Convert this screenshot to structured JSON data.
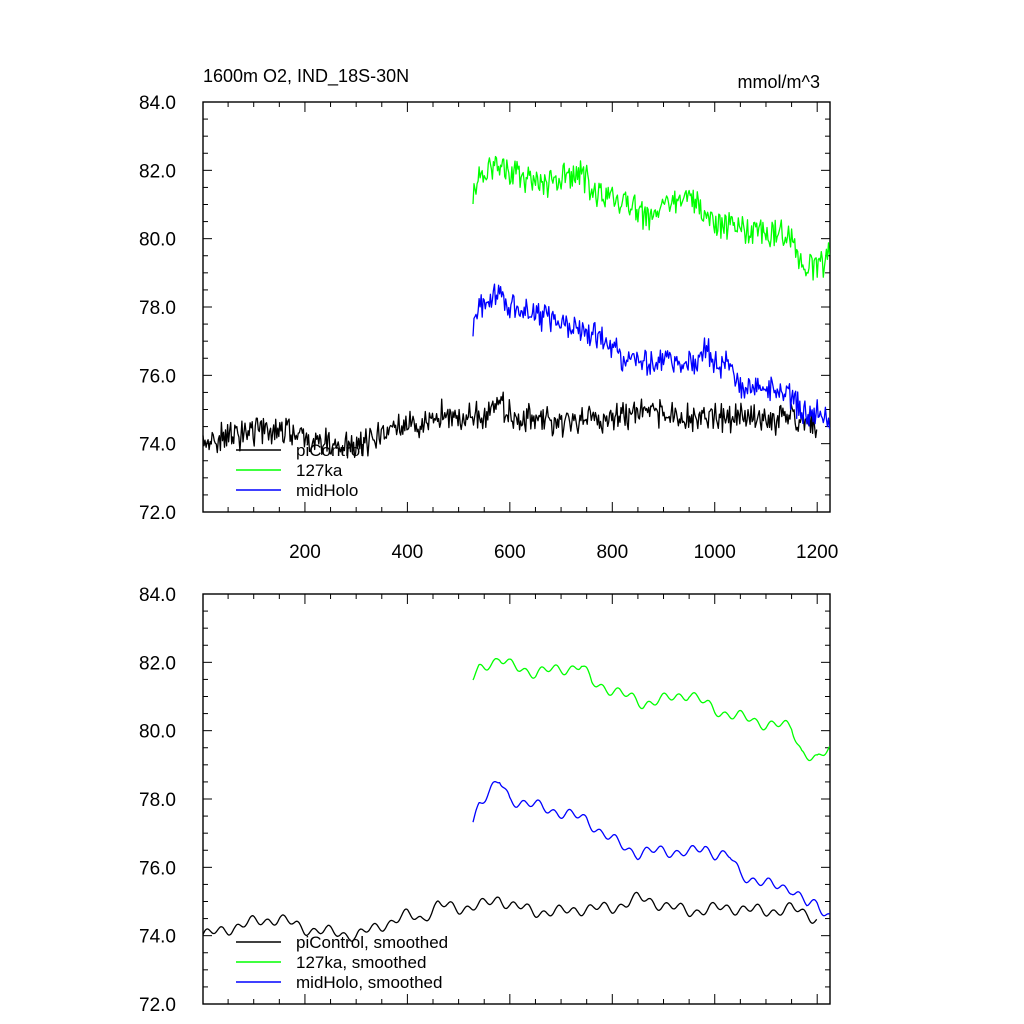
{
  "chart_data": [
    {
      "type": "line",
      "title": "1600m O2, IND_18S-30N",
      "units": "mmol/m^3",
      "xlim": [
        1,
        1225
      ],
      "ylim": [
        72,
        84
      ],
      "xticks": [
        200,
        400,
        600,
        800,
        1000,
        1200
      ],
      "xtick_labels": [
        "200",
        "400",
        "600",
        "800",
        "1000",
        "1200"
      ],
      "yticks": [
        72,
        74,
        76,
        78,
        80,
        82,
        84
      ],
      "ytick_labels": [
        "72.0",
        "74.0",
        "76.0",
        "78.0",
        "80.0",
        "82.0",
        "84.0"
      ],
      "legend_position": "bottom-left",
      "series": [
        {
          "name": "piControl",
          "color": "#000000",
          "x": [
            1,
            50,
            100,
            150,
            200,
            250,
            300,
            350,
            400,
            430,
            460,
            500,
            550,
            580,
            600,
            650,
            700,
            750,
            800,
            850,
            900,
            950,
            1000,
            1050,
            1100,
            1150,
            1200
          ],
          "y": [
            74.0,
            74.2,
            74.4,
            74.5,
            74.1,
            74.0,
            73.9,
            74.3,
            74.6,
            74.4,
            74.9,
            74.7,
            74.8,
            75.1,
            74.9,
            74.7,
            74.6,
            74.8,
            74.7,
            75.0,
            74.9,
            74.7,
            74.8,
            74.8,
            74.7,
            74.8,
            74.5
          ]
        },
        {
          "name": "127ka",
          "color": "#00ff00",
          "x": [
            528,
            540,
            560,
            580,
            600,
            650,
            700,
            740,
            760,
            800,
            830,
            860,
            900,
            950,
            1000,
            1050,
            1100,
            1150,
            1170,
            1200,
            1225
          ],
          "y": [
            81.4,
            81.8,
            82.0,
            82.2,
            81.9,
            81.6,
            81.8,
            81.9,
            81.4,
            81.2,
            80.9,
            80.7,
            80.9,
            81.2,
            80.5,
            80.3,
            80.2,
            80.1,
            79.3,
            79.1,
            79.6
          ]
        },
        {
          "name": "midHolo",
          "color": "#0000ff",
          "x": [
            528,
            540,
            560,
            580,
            600,
            650,
            700,
            750,
            780,
            800,
            850,
            900,
            950,
            980,
            1000,
            1030,
            1050,
            1100,
            1150,
            1180,
            1200,
            1225
          ],
          "y": [
            77.4,
            77.9,
            78.2,
            78.5,
            78.0,
            77.8,
            77.6,
            77.3,
            77.0,
            76.7,
            76.4,
            76.5,
            76.4,
            76.7,
            76.4,
            76.3,
            75.7,
            75.5,
            75.4,
            74.8,
            74.9,
            74.6
          ]
        }
      ]
    },
    {
      "type": "line",
      "xlim": [
        1,
        1225
      ],
      "ylim": [
        72,
        84
      ],
      "xticks": [
        200,
        400,
        600,
        800,
        1000,
        1200
      ],
      "yticks": [
        72,
        74,
        76,
        78,
        80,
        82,
        84
      ],
      "ytick_labels": [
        "72.0",
        "74.0",
        "76.0",
        "78.0",
        "80.0",
        "82.0",
        "84.0"
      ],
      "legend_position": "bottom-left",
      "series": [
        {
          "name": "piControl, smoothed",
          "color": "#000000",
          "x": [
            1,
            50,
            100,
            150,
            200,
            250,
            300,
            350,
            400,
            430,
            460,
            500,
            550,
            580,
            600,
            650,
            700,
            750,
            800,
            850,
            900,
            950,
            1000,
            1050,
            1100,
            1150,
            1200
          ],
          "y": [
            74.0,
            74.2,
            74.4,
            74.5,
            74.2,
            74.1,
            74.0,
            74.3,
            74.6,
            74.5,
            74.9,
            74.8,
            74.9,
            75.1,
            74.9,
            74.7,
            74.7,
            74.8,
            74.8,
            75.1,
            74.9,
            74.7,
            74.8,
            74.8,
            74.7,
            74.8,
            74.5
          ]
        },
        {
          "name": "127ka, smoothed",
          "color": "#00ff00",
          "x": [
            528,
            540,
            560,
            580,
            600,
            650,
            700,
            740,
            760,
            800,
            830,
            860,
            900,
            950,
            1000,
            1050,
            1100,
            1150,
            1170,
            1200,
            1225
          ],
          "y": [
            81.5,
            81.8,
            82.0,
            82.1,
            81.9,
            81.7,
            81.8,
            81.9,
            81.4,
            81.2,
            81.0,
            80.8,
            80.9,
            81.1,
            80.6,
            80.4,
            80.2,
            80.1,
            79.4,
            79.1,
            79.5
          ]
        },
        {
          "name": "midHolo, smoothed",
          "color": "#0000ff",
          "x": [
            528,
            540,
            560,
            580,
            600,
            650,
            700,
            750,
            780,
            800,
            850,
            900,
            950,
            980,
            1000,
            1030,
            1050,
            1100,
            1150,
            1180,
            1200,
            1225
          ],
          "y": [
            77.4,
            77.9,
            78.2,
            78.5,
            78.0,
            77.8,
            77.6,
            77.4,
            77.0,
            76.8,
            76.4,
            76.5,
            76.4,
            76.6,
            76.4,
            76.3,
            75.8,
            75.5,
            75.4,
            74.9,
            74.9,
            74.6
          ]
        }
      ]
    }
  ]
}
